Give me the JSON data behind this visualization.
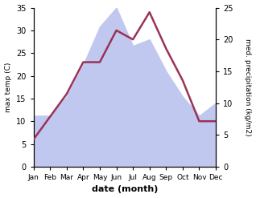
{
  "months": [
    "Jan",
    "Feb",
    "Mar",
    "Apr",
    "May",
    "Jun",
    "Jul",
    "Aug",
    "Sep",
    "Oct",
    "Nov",
    "Dec"
  ],
  "temp": [
    6,
    11,
    16,
    23,
    23,
    30,
    28,
    34,
    26,
    19,
    10,
    10
  ],
  "precip": [
    8,
    8,
    11,
    16,
    22,
    25,
    19,
    20,
    15,
    11,
    8,
    10
  ],
  "temp_color": "#993355",
  "precip_fill_color": "#c0c8f0",
  "precip_line_color": "#9099cc",
  "temp_ylim": [
    0,
    35
  ],
  "precip_ylim": [
    0,
    25
  ],
  "temp_yticks": [
    0,
    5,
    10,
    15,
    20,
    25,
    30,
    35
  ],
  "precip_yticks": [
    0,
    5,
    10,
    15,
    20,
    25
  ],
  "xlabel": "date (month)",
  "ylabel_left": "max temp (C)",
  "ylabel_right": "med. precipitation (kg/m2)",
  "bg_color": "#ffffff"
}
